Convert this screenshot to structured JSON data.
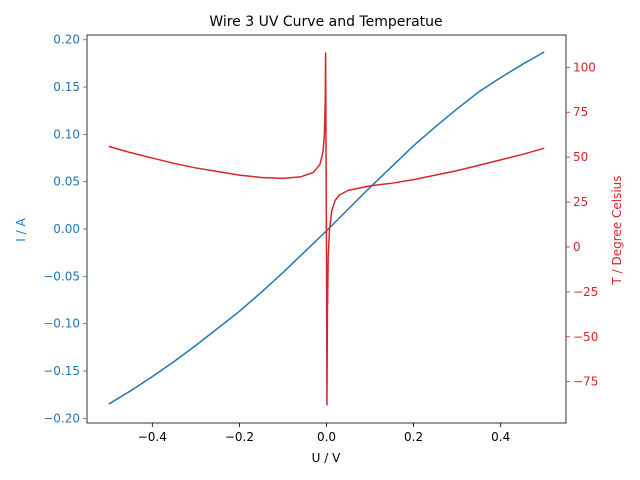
{
  "chart_data": {
    "type": "line",
    "title": "Wire 3 UV Curve and Temperatue",
    "xlabel": "U / V",
    "ylabel_left": "I / A",
    "ylabel_right": "T / Degree Celsius",
    "xlim": [
      -0.55,
      0.55
    ],
    "ylim_left": [
      -0.205,
      0.205
    ],
    "ylim_right": [
      -98,
      118
    ],
    "x_ticks": [
      -0.4,
      -0.2,
      0.0,
      0.2,
      0.4
    ],
    "x_tick_labels": [
      "−0.4",
      "−0.2",
      "0.0",
      "0.2",
      "0.4"
    ],
    "y_left_ticks": [
      -0.2,
      -0.15,
      -0.1,
      -0.05,
      0.0,
      0.05,
      0.1,
      0.15,
      0.2
    ],
    "y_left_tick_labels": [
      "−0.20",
      "−0.15",
      "−0.10",
      "−0.05",
      "0.00",
      "0.05",
      "0.10",
      "0.15",
      "0.20"
    ],
    "y_right_ticks": [
      -75,
      -50,
      -25,
      0,
      25,
      50,
      75,
      100
    ],
    "y_right_tick_labels": [
      "−75",
      "−50",
      "−25",
      "0",
      "25",
      "50",
      "75",
      "100"
    ],
    "grid": false,
    "colors": {
      "current": "#1f77b4",
      "temperature": "#d62728"
    },
    "series": [
      {
        "axis": "left",
        "color": "#1f77b4",
        "x": [
          -0.5,
          -0.45,
          -0.4,
          -0.35,
          -0.3,
          -0.25,
          -0.2,
          -0.15,
          -0.1,
          -0.05,
          0.0,
          0.05,
          0.1,
          0.15,
          0.2,
          0.25,
          0.3,
          0.35,
          0.4,
          0.45,
          0.5
        ],
        "y": [
          -0.185,
          -0.171,
          -0.156,
          -0.14,
          -0.123,
          -0.105,
          -0.087,
          -0.067,
          -0.046,
          -0.024,
          -0.002,
          0.021,
          0.044,
          0.066,
          0.088,
          0.108,
          0.127,
          0.145,
          0.16,
          0.174,
          0.187
        ]
      },
      {
        "axis": "right",
        "color": "#d62728",
        "x": [
          -0.5,
          -0.45,
          -0.4,
          -0.35,
          -0.3,
          -0.25,
          -0.2,
          -0.15,
          -0.1,
          -0.06,
          -0.03,
          -0.015,
          -0.008,
          -0.005,
          -0.003,
          -0.002,
          -0.001,
          0.0,
          0.001,
          0.002,
          0.004,
          0.007,
          0.012,
          0.02,
          0.03,
          0.05,
          0.1,
          0.15,
          0.2,
          0.25,
          0.3,
          0.35,
          0.4,
          0.45,
          0.5
        ],
        "y": [
          56,
          52.5,
          49.5,
          46.5,
          44,
          42,
          40,
          38.7,
          38.2,
          39,
          41.5,
          46,
          53,
          62,
          80,
          108,
          50,
          -5,
          -88,
          -40,
          -5,
          10,
          20,
          26,
          29,
          31.5,
          34,
          35.5,
          37.5,
          40,
          42.5,
          45.5,
          48.5,
          51.5,
          55
        ]
      }
    ]
  }
}
